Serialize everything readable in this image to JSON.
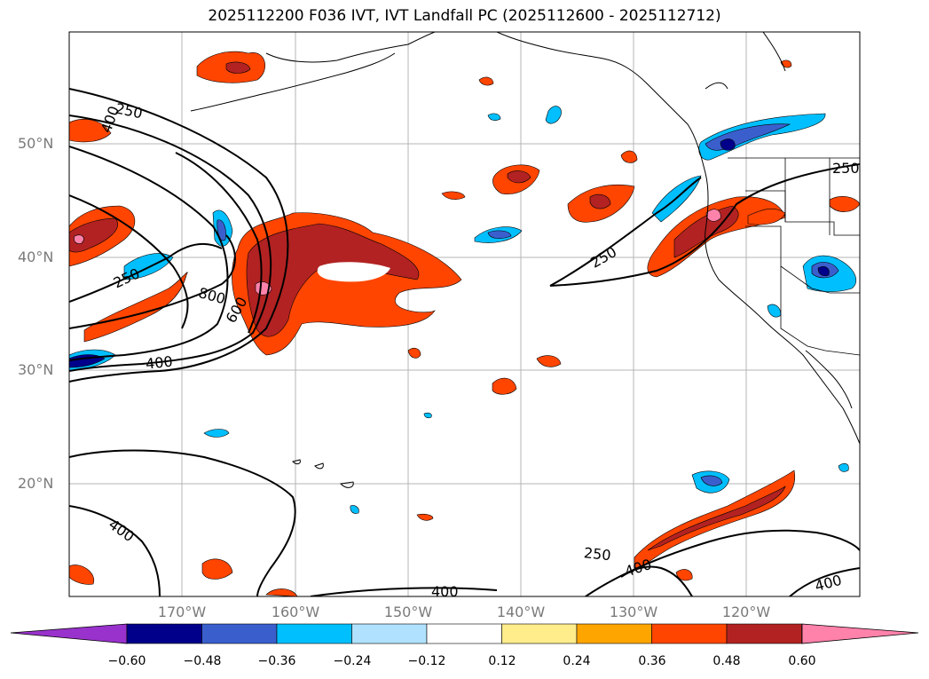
{
  "title": "2025112200 F036 IVT, IVT Landfall PC (2025112600 - 2025112712)",
  "lat_labels": [
    "50°N",
    "40°N",
    "30°N",
    "20°N"
  ],
  "lon_labels": [
    "170°W",
    "160°W",
    "150°W",
    "140°W",
    "130°W",
    "120°W"
  ],
  "contour_labels": [
    "250",
    "400",
    "250",
    "800",
    "600",
    "400",
    "250",
    "250",
    "400",
    "250",
    "400",
    "400",
    "400"
  ],
  "colorbar": {
    "ticks": [
      "−0.60",
      "−0.48",
      "−0.36",
      "−0.24",
      "−0.12",
      "0.12",
      "0.24",
      "0.36",
      "0.48",
      "0.60"
    ],
    "colors": [
      "#9932cc",
      "#00008b",
      "#3a5fcd",
      "#00bfff",
      "#b0e2ff",
      "#ffffff",
      "#ffec8b",
      "#ffa500",
      "#ff4500",
      "#b22222",
      "#ff82ab"
    ]
  }
}
